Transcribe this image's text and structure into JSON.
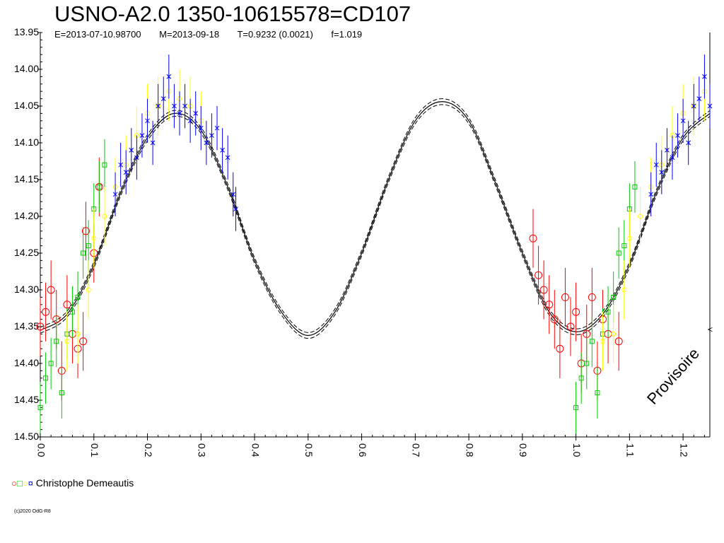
{
  "header": {
    "title": "USNO-A2.0 1350-10615578=CD107",
    "epoch": "E=2013-07-10.98700",
    "mean": "M=2013-09-18",
    "period": "T=0.9232 (0.0021)",
    "f": "f=1.019"
  },
  "legend": {
    "symbols": "○□○¤",
    "observer": "Christophe Demeautis"
  },
  "watermark": "Provisoire",
  "copyright": "(c)2020 OdG-R8",
  "right_marker": "<",
  "colors": {
    "red": "#ff0000",
    "green": "#00cc00",
    "yellow": "#ffff00",
    "blue": "#0000ff",
    "curve": "#000000"
  },
  "chart_data": {
    "type": "scatter",
    "title": "USNO-A2.0 1350-10615578=CD107",
    "xlabel": "",
    "ylabel": "",
    "xlim": [
      0.0,
      1.25
    ],
    "ylim": [
      13.95,
      14.5
    ],
    "y_inverted": true,
    "x_ticks": [
      "0.0",
      "0.1",
      "0.2",
      "0.3",
      "0.4",
      "0.5",
      "0.6",
      "0.7",
      "0.8",
      "0.9",
      "1.0",
      "1.1",
      "1.2"
    ],
    "y_ticks": [
      "13.95",
      "14.00",
      "14.05",
      "14.10",
      "14.15",
      "14.20",
      "14.25",
      "14.30",
      "14.35",
      "14.40",
      "14.45",
      "14.50"
    ],
    "model_curve": {
      "x": [
        0.0,
        0.05,
        0.1,
        0.15,
        0.2,
        0.25,
        0.3,
        0.35,
        0.4,
        0.45,
        0.5,
        0.55,
        0.6,
        0.65,
        0.7,
        0.75,
        0.8,
        0.85,
        0.9,
        0.95,
        1.0,
        1.05,
        1.1,
        1.15,
        1.2,
        1.25
      ],
      "y": [
        14.355,
        14.333,
        14.266,
        14.168,
        14.093,
        14.06,
        14.083,
        14.16,
        14.26,
        14.33,
        14.362,
        14.33,
        14.25,
        14.15,
        14.07,
        14.044,
        14.07,
        14.155,
        14.25,
        14.33,
        14.357,
        14.333,
        14.266,
        14.168,
        14.093,
        14.06
      ],
      "band_offset": 0.004
    },
    "series": [
      {
        "name": "red",
        "marker": "circle",
        "x": [
          0.0,
          0.01,
          0.02,
          0.03,
          0.04,
          0.05,
          0.06,
          0.07,
          0.08,
          0.085,
          0.1,
          0.11,
          0.92,
          0.93,
          0.94,
          0.95,
          0.96,
          0.97,
          0.98,
          0.99,
          1.0,
          1.01,
          1.02,
          1.03,
          1.04,
          1.05,
          1.06,
          1.08
        ],
        "y": [
          14.35,
          14.33,
          14.3,
          14.34,
          14.41,
          14.32,
          14.36,
          14.38,
          14.37,
          14.22,
          14.25,
          14.16,
          14.23,
          14.28,
          14.3,
          14.32,
          14.34,
          14.38,
          14.31,
          14.35,
          14.33,
          14.4,
          14.36,
          14.31,
          14.41,
          14.34,
          14.36,
          14.37
        ],
        "err": 0.04
      },
      {
        "name": "green",
        "marker": "square",
        "x": [
          0.0,
          0.01,
          0.02,
          0.03,
          0.04,
          0.05,
          0.06,
          0.07,
          0.08,
          0.09,
          0.1,
          0.11,
          0.12,
          1.0,
          1.01,
          1.02,
          1.03,
          1.04,
          1.05,
          1.06,
          1.07,
          1.08,
          1.09,
          1.1,
          1.11
        ],
        "y": [
          14.46,
          14.42,
          14.4,
          14.37,
          14.44,
          14.36,
          14.33,
          14.31,
          14.25,
          14.24,
          14.19,
          14.16,
          14.13,
          14.46,
          14.42,
          14.4,
          14.37,
          14.44,
          14.36,
          14.33,
          14.31,
          14.25,
          14.24,
          14.19,
          14.16
        ],
        "err": 0.035
      },
      {
        "name": "yellow",
        "marker": "circle",
        "x": [
          0.05,
          0.07,
          0.09,
          0.1,
          0.12,
          0.14,
          0.16,
          0.18,
          0.2,
          0.22,
          0.24,
          0.26,
          0.28,
          0.3,
          1.05,
          1.07,
          1.09,
          1.1,
          1.12,
          1.14,
          1.16,
          1.18,
          1.2,
          1.22,
          1.24
        ],
        "y": [
          14.37,
          14.36,
          14.3,
          14.23,
          14.2,
          14.16,
          14.13,
          14.09,
          14.06,
          14.05,
          14.03,
          14.04,
          14.05,
          14.07,
          14.37,
          14.36,
          14.3,
          14.23,
          14.2,
          14.16,
          14.13,
          14.09,
          14.06,
          14.05,
          14.03
        ],
        "err": 0.04
      },
      {
        "name": "blue",
        "marker": "star",
        "x": [
          0.14,
          0.15,
          0.16,
          0.17,
          0.18,
          0.19,
          0.2,
          0.21,
          0.22,
          0.23,
          0.24,
          0.25,
          0.26,
          0.27,
          0.28,
          0.29,
          0.3,
          0.31,
          0.32,
          0.33,
          0.34,
          0.35,
          0.36,
          0.365,
          1.14,
          1.15,
          1.16,
          1.17,
          1.18,
          1.19,
          1.2,
          1.21,
          1.22,
          1.23,
          1.24,
          1.25
        ],
        "y": [
          14.17,
          14.13,
          14.14,
          14.11,
          14.12,
          14.09,
          14.07,
          14.1,
          14.05,
          14.04,
          14.01,
          14.05,
          14.06,
          14.05,
          14.07,
          14.06,
          14.08,
          14.1,
          14.09,
          14.08,
          14.11,
          14.12,
          14.17,
          14.19,
          14.17,
          14.13,
          14.14,
          14.11,
          14.12,
          14.09,
          14.07,
          14.1,
          14.05,
          14.04,
          14.01,
          14.05
        ],
        "err": 0.03
      }
    ]
  }
}
